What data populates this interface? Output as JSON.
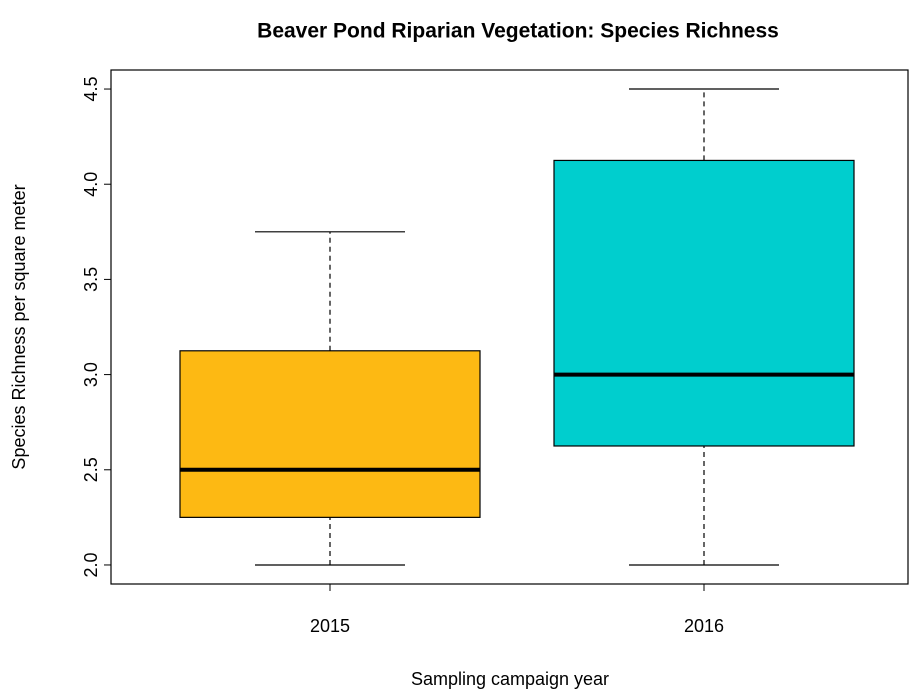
{
  "chart_data": {
    "type": "boxplot",
    "title": "Beaver Pond Riparian Vegetation: Species Richness",
    "x_label": "Sampling campaign year",
    "y_label": "Species Richness per square meter",
    "categories": [
      "2015",
      "2016"
    ],
    "colors": [
      "#fdb913",
      "#00cece"
    ],
    "boxes": [
      {
        "min": 2.0,
        "q1": 2.25,
        "median": 2.5,
        "q3": 3.125,
        "max": 3.75
      },
      {
        "min": 2.0,
        "q1": 2.625,
        "median": 3.0,
        "q3": 4.125,
        "max": 4.5
      }
    ],
    "ylim": [
      1.9,
      4.6
    ],
    "yticks": [
      {
        "value": 2,
        "label": "2.0"
      },
      {
        "value": 2.5,
        "label": "2.5"
      },
      {
        "value": 3,
        "label": "3.0"
      },
      {
        "value": 3.5,
        "label": "3.5"
      },
      {
        "value": 4,
        "label": "4.0"
      },
      {
        "value": 4.5,
        "label": "4.5"
      }
    ]
  }
}
